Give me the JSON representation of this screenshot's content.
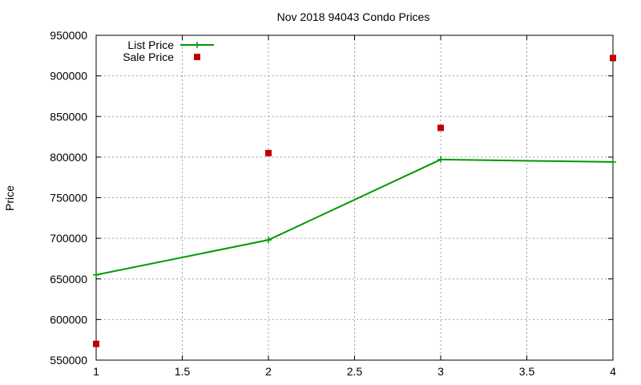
{
  "chart_data": {
    "type": "line",
    "title": "Nov 2018 94043 Condo Prices",
    "ylabel": "Price",
    "xlabel": "",
    "xlim": [
      1,
      4
    ],
    "ylim": [
      550000,
      950000
    ],
    "x_ticks": [
      1,
      1.5,
      2,
      2.5,
      3,
      3.5,
      4
    ],
    "x_tick_labels": [
      "1",
      "1.5",
      "2",
      "2.5",
      "3",
      "3.5",
      "4"
    ],
    "y_ticks": [
      550000,
      600000,
      650000,
      700000,
      750000,
      800000,
      850000,
      900000,
      950000
    ],
    "y_tick_labels": [
      "550000",
      "600000",
      "650000",
      "700000",
      "750000",
      "800000",
      "850000",
      "900000",
      "950000"
    ],
    "grid": true,
    "legend_position": "top-left",
    "series": [
      {
        "name": "List Price",
        "mark": "line-plus",
        "color": "#009900",
        "x": [
          1,
          2,
          3,
          4
        ],
        "y": [
          655000,
          698000,
          797000,
          794000
        ]
      },
      {
        "name": "Sale Price",
        "mark": "square",
        "color": "#c00000",
        "x": [
          1,
          2,
          3,
          4
        ],
        "y": [
          570000,
          805000,
          836000,
          922000
        ]
      }
    ]
  }
}
